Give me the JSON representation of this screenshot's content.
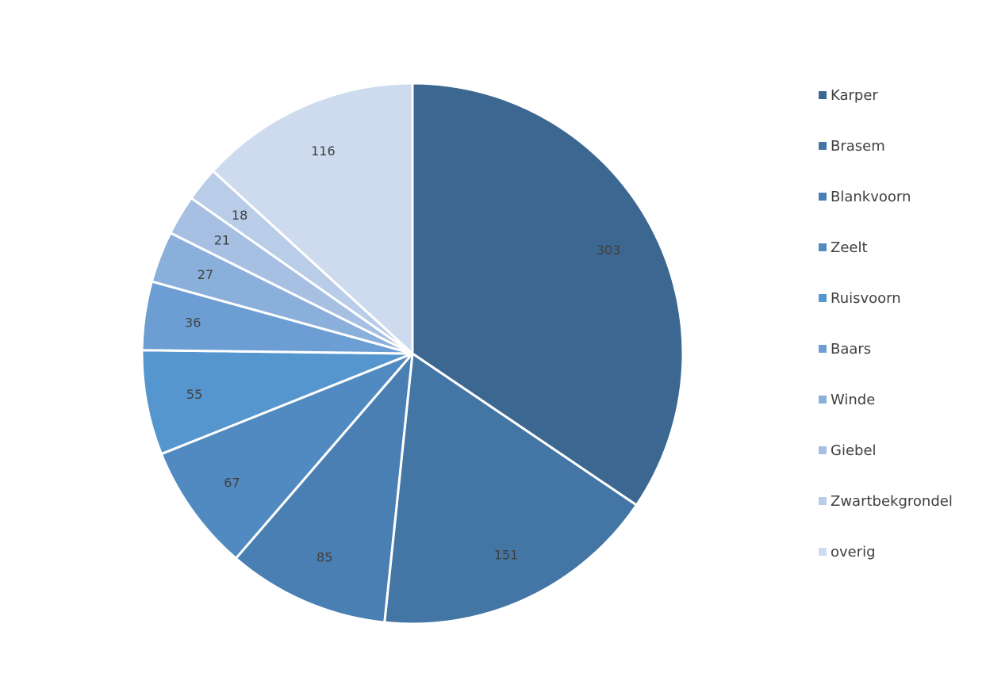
{
  "chart_data": {
    "type": "pie",
    "title": "",
    "categories": [
      "Karper",
      "Brasem",
      "Blankvoorn",
      "Zeelt",
      "Ruisvoorn",
      "Baars",
      "Winde",
      "Giebel",
      "Zwartbekgrondel",
      "overig"
    ],
    "values": [
      303,
      151,
      85,
      67,
      55,
      36,
      27,
      21,
      18,
      116
    ],
    "colors": [
      "#3B6790",
      "#4376A5",
      "#4A7FB3",
      "#508AC0",
      "#5696CF",
      "#6C9ED4",
      "#8BAFDB",
      "#A6BFE3",
      "#B9CCE8",
      "#CEDBEE"
    ],
    "start_angle_deg": 0,
    "direction": "clockwise",
    "legend": {
      "position": "right",
      "items": [
        "Karper",
        "Brasem",
        "Blankvoorn",
        "Zeelt",
        "Ruisvoorn",
        "Baars",
        "Winde",
        "Giebel",
        "Zwartbekgrondel",
        "overig"
      ]
    },
    "data_labels": true
  }
}
